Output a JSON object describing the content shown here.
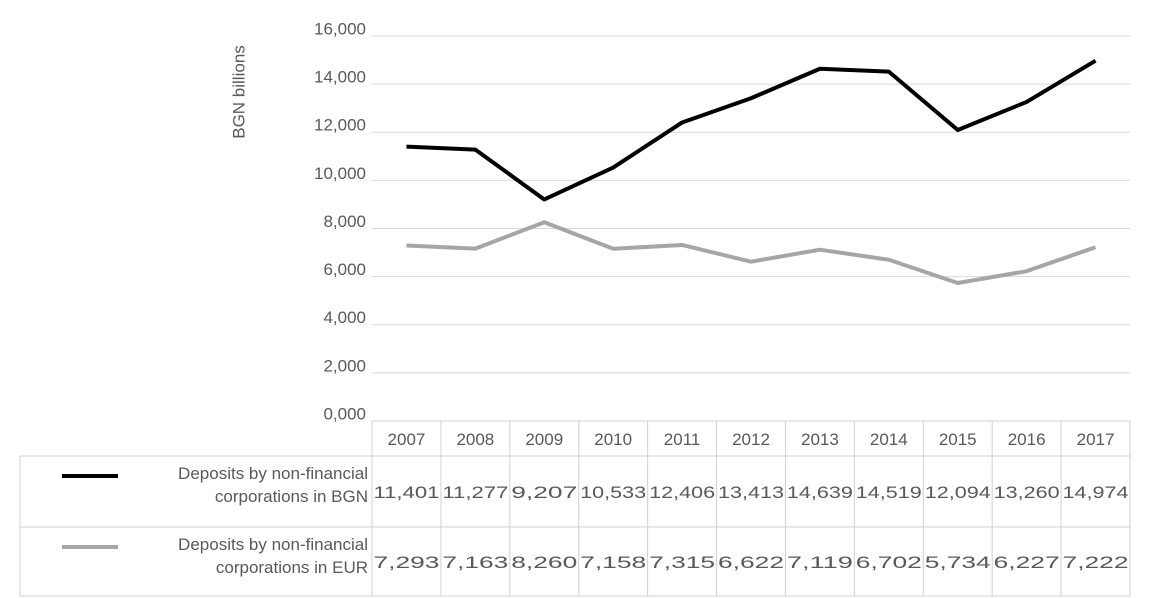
{
  "chart_data": {
    "type": "line",
    "y_label": "BGN billions",
    "categories": [
      "2007",
      "2008",
      "2009",
      "2010",
      "2011",
      "2012",
      "2013",
      "2014",
      "2015",
      "2016",
      "2017"
    ],
    "series": [
      {
        "name": "Deposits by non-financial corporations in BGN",
        "color": "#000000",
        "values": [
          11401,
          11277,
          9207,
          10533,
          12406,
          13413,
          14639,
          14519,
          12094,
          13260,
          14974
        ],
        "value_labels": [
          "11,401",
          "11,277",
          "9,207",
          "10,533",
          "12,406",
          "13,413",
          "14,639",
          "14,519",
          "12,094",
          "13,260",
          "14,974"
        ]
      },
      {
        "name": "Deposits by non-financial corporations in EUR",
        "color": "#a6a6a6",
        "values": [
          7293,
          7163,
          8260,
          7158,
          7315,
          6622,
          7119,
          6702,
          5734,
          6227,
          7222
        ],
        "value_labels": [
          "7,293",
          "7,163",
          "8,260",
          "7,158",
          "7,315",
          "6,622",
          "7,119",
          "6,702",
          "5,734",
          "6,227",
          "7,222"
        ]
      }
    ],
    "ylim": [
      0,
      16000
    ],
    "yticks": [
      {
        "value": 0,
        "label": "0,000"
      },
      {
        "value": 2000,
        "label": "2,000"
      },
      {
        "value": 4000,
        "label": "4,000"
      },
      {
        "value": 6000,
        "label": "6,000"
      },
      {
        "value": 8000,
        "label": "8,000"
      },
      {
        "value": 10000,
        "label": "10,000"
      },
      {
        "value": 12000,
        "label": "12,000"
      },
      {
        "value": 14000,
        "label": "14,000"
      },
      {
        "value": 16000,
        "label": "16,000"
      }
    ],
    "grid": true
  }
}
